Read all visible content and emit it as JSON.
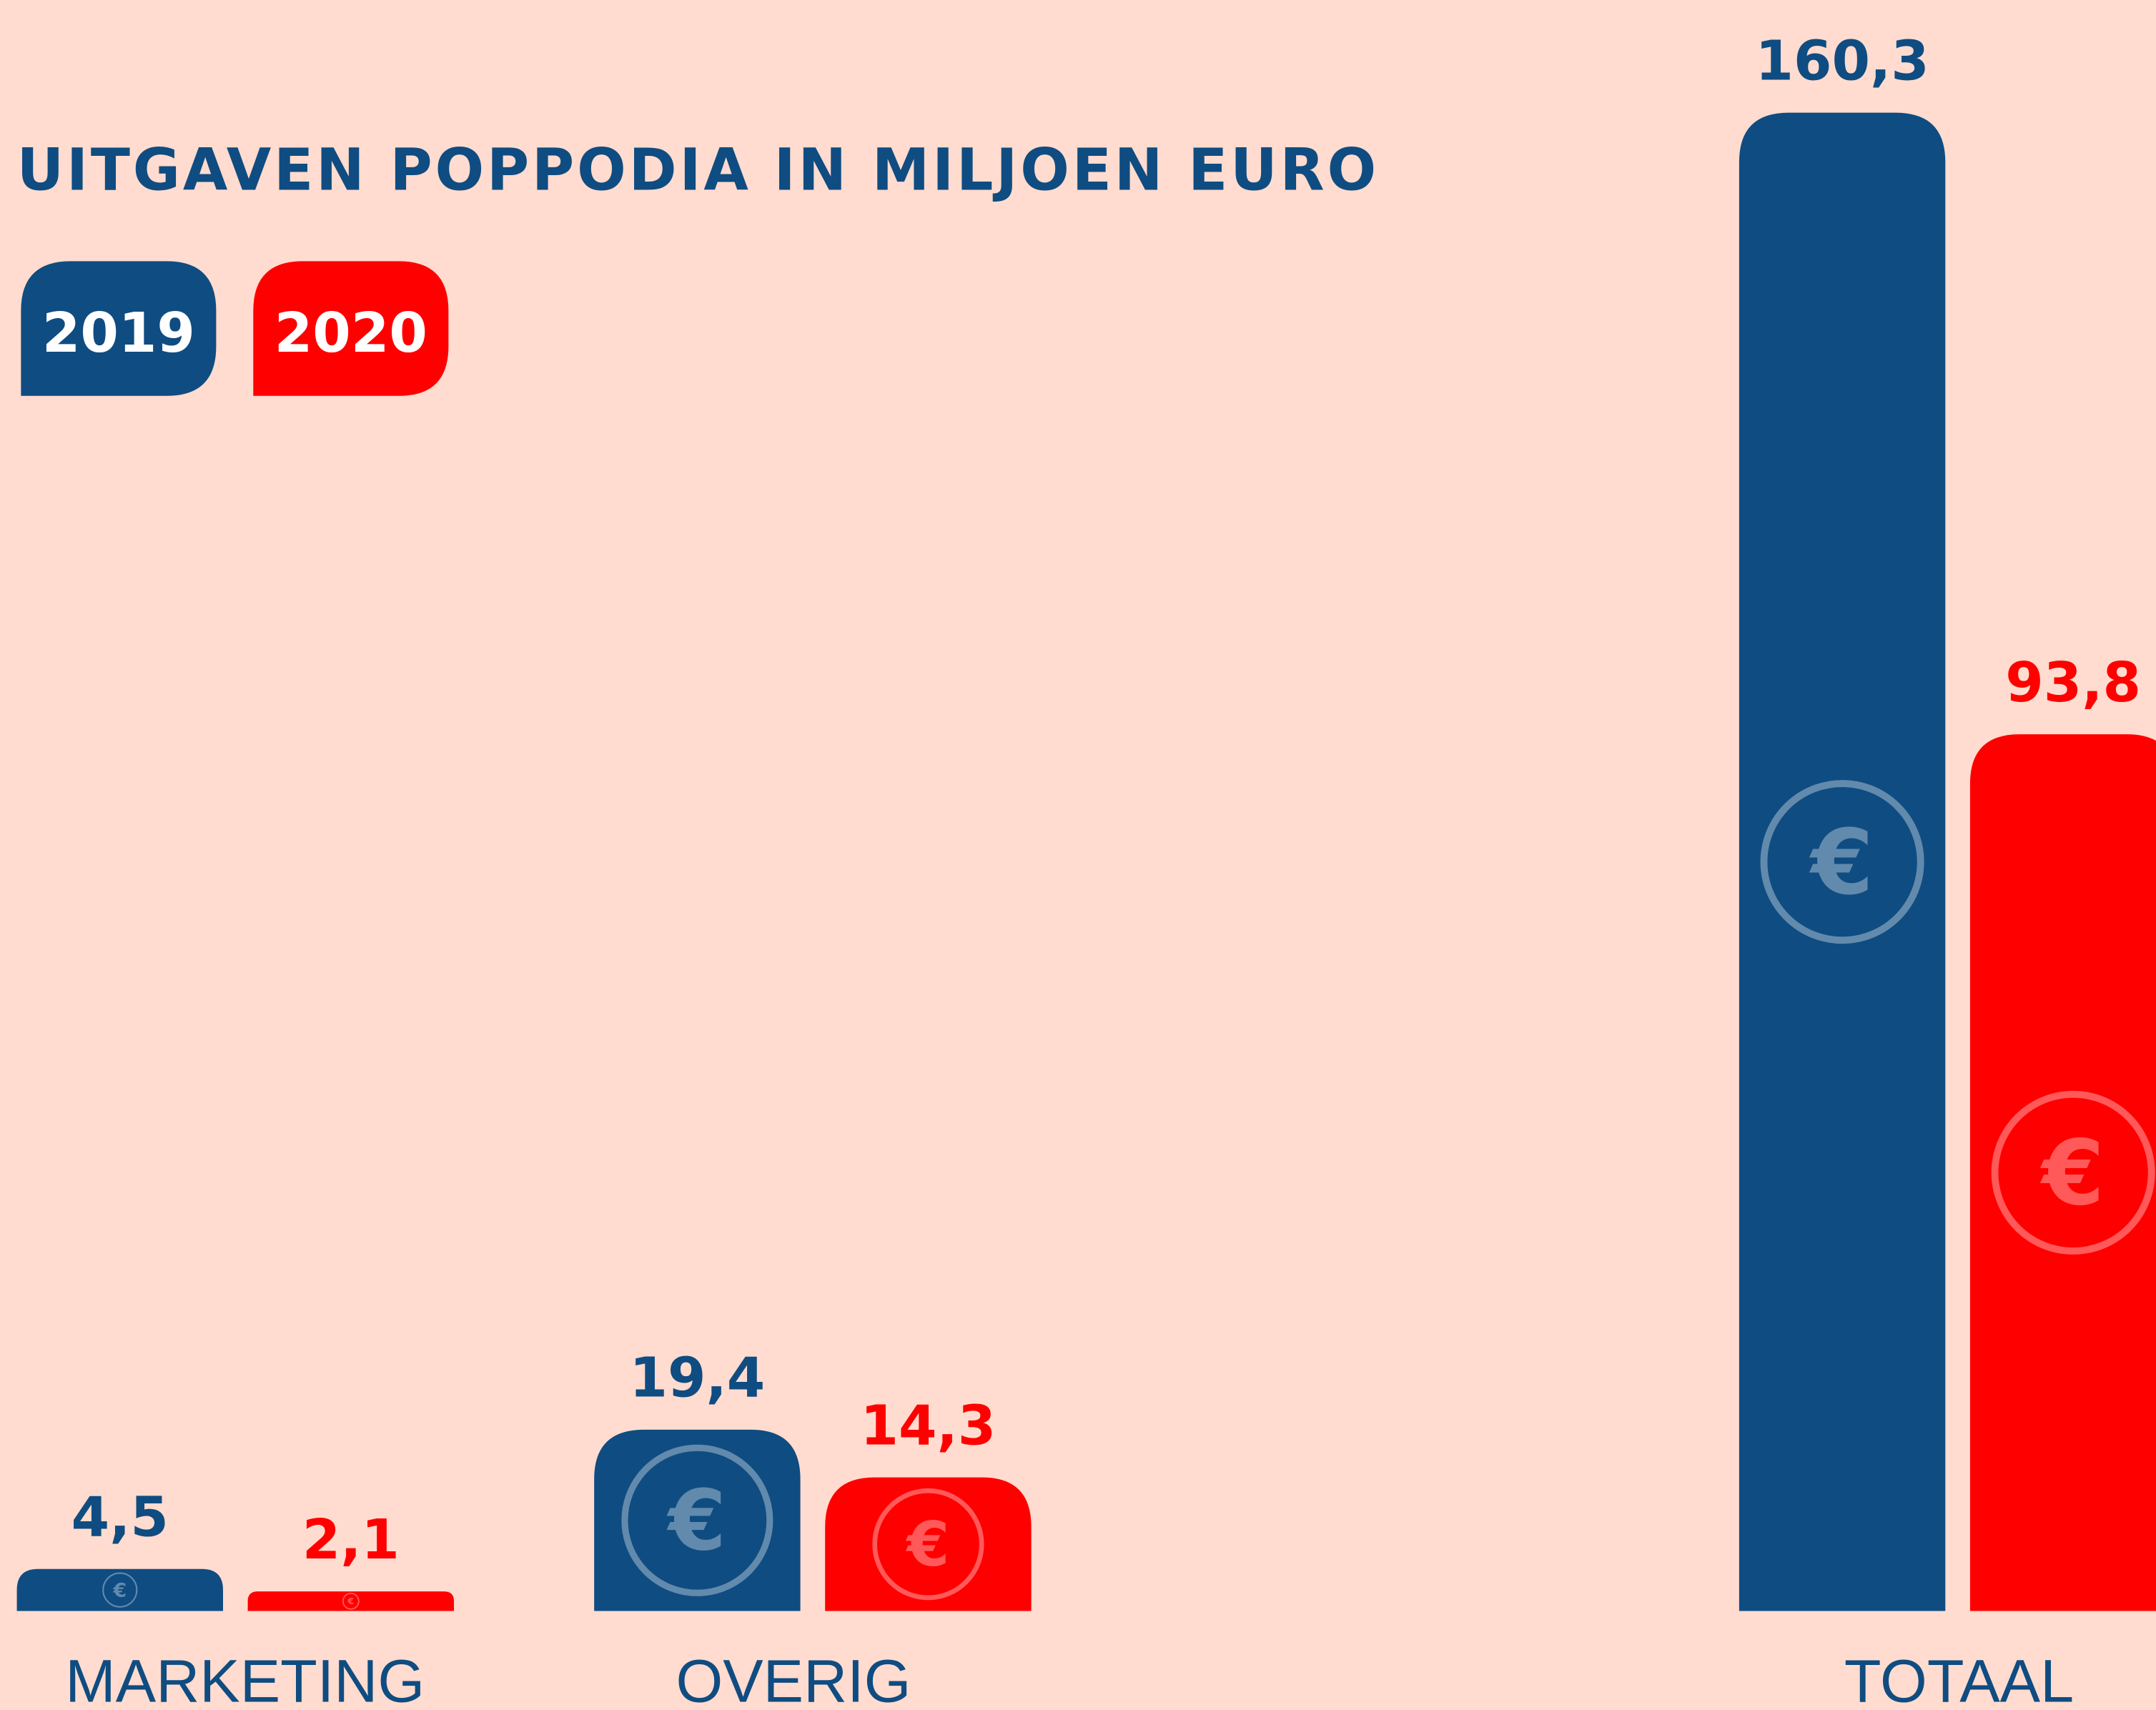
{
  "chart_data": {
    "type": "bar",
    "title": "UITGAVEN POPPODIA IN MILJOEN EURO",
    "categories": [
      "MARKETING",
      "OVERIG",
      "TOTAAL"
    ],
    "series": [
      {
        "name": "2019",
        "color": "#0f4c81",
        "values": [
          4.5,
          19.4,
          160.3
        ],
        "value_labels": [
          "4,5",
          "19,4",
          "160,3"
        ]
      },
      {
        "name": "2020",
        "color": "#ff0000",
        "values": [
          2.1,
          14.3,
          93.8
        ],
        "value_labels": [
          "2,1",
          "14,3",
          "93,8"
        ]
      }
    ]
  }
}
